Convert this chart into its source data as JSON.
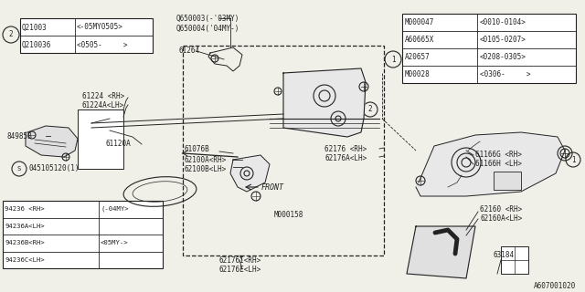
{
  "bg_color": "#f0f0e8",
  "line_color": "#222222",
  "diagram_code": "A607001020",
  "table1_rows": [
    [
      "Q21003",
      "<-05MY0505>"
    ],
    [
      "Q210036",
      "<0505-     >"
    ]
  ],
  "table2_rows": [
    [
      "M000047",
      "<0010-0104>"
    ],
    [
      "A60665X",
      "<0105-0207>"
    ],
    [
      "A20657",
      "<0208-0305>"
    ],
    [
      "M00028",
      "<0306-     >"
    ]
  ],
  "table3_rows": [
    [
      "94236 <RH>",
      "(-04MY>"
    ],
    [
      "94236A<LH>",
      ""
    ],
    [
      "94236B<RH>",
      "<05MY->"
    ],
    [
      "94236C<LH>",
      ""
    ]
  ]
}
